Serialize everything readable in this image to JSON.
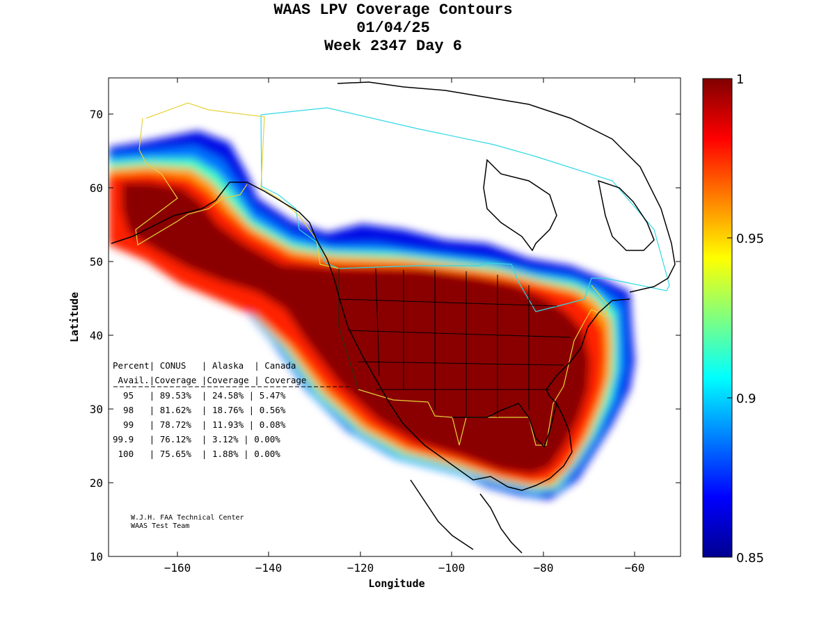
{
  "title": {
    "line1": "WAAS LPV Coverage Contours",
    "line2": "01/04/25",
    "line3": "Week 2347 Day 6"
  },
  "axes": {
    "xlabel": "Longitude",
    "ylabel": "Latitude",
    "xlim": [
      -175,
      -50
    ],
    "ylim": [
      10,
      75
    ],
    "xticks": [
      -160,
      -140,
      -120,
      -100,
      -80,
      -60
    ],
    "yticks": [
      10,
      20,
      30,
      40,
      50,
      60,
      70
    ],
    "xtick_labels": [
      "−160",
      "−140",
      "−120",
      "−100",
      "−80",
      "−60"
    ],
    "ytick_labels": [
      "10",
      "20",
      "30",
      "40",
      "50",
      "60",
      "70"
    ]
  },
  "colorbar": {
    "min": 0.85,
    "max": 1,
    "ticks": [
      0.85,
      0.9,
      0.95,
      1
    ],
    "tick_labels": [
      "0.85",
      "0.9",
      "0.95",
      "1"
    ],
    "colormap": "jet"
  },
  "coverage_table": {
    "header1": "Percent| CONUS   | Alaska  | Canada",
    "header2": " Avail.|Coverage |Coverage | Coverage",
    "rows": [
      "  95   | 89.53%  | 24.58% | 5.47%",
      "  98   | 81.62%  | 18.76% | 0.56%",
      "  99   | 78.72%  | 11.93% | 0.08%",
      "99.9   | 76.12%  | 3.12% | 0.00%",
      " 100   | 75.65%  | 1.88% | 0.00%"
    ]
  },
  "credit": {
    "line1": "W.J.H. FAA Technical Center",
    "line2": "WAAS Test Team"
  },
  "colors": {
    "service_volume_conus": "#e6d23c",
    "service_volume_canada": "#2fd8e6",
    "coastline": "#000000"
  }
}
